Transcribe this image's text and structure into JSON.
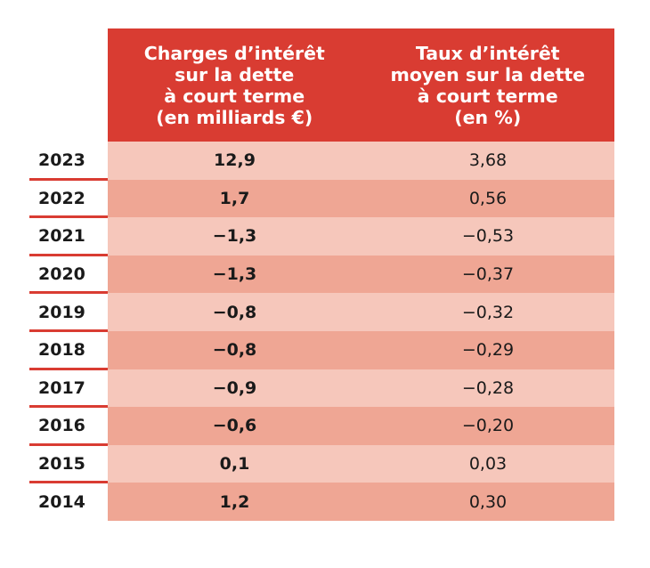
{
  "colors": {
    "header_bg": "#d93c32",
    "row_light": "#f6c7bb",
    "row_dark": "#efa694",
    "underline": "#d93c32"
  },
  "header": {
    "col1": "Charges d’intérêt\nsur la dette\nà court terme\n(en milliards €)",
    "col2": "Taux d’intérêt\nmoyen sur la dette\nà court terme\n(en %)"
  },
  "rows": [
    {
      "year": "2023",
      "charges": "12,9",
      "taux": "3,68"
    },
    {
      "year": "2022",
      "charges": "1,7",
      "taux": "0,56"
    },
    {
      "year": "2021",
      "charges": "−1,3",
      "taux": "−0,53"
    },
    {
      "year": "2020",
      "charges": "−1,3",
      "taux": "−0,37"
    },
    {
      "year": "2019",
      "charges": "−0,8",
      "taux": "−0,32"
    },
    {
      "year": "2018",
      "charges": "−0,8",
      "taux": "−0,29"
    },
    {
      "year": "2017",
      "charges": "−0,9",
      "taux": "−0,28"
    },
    {
      "year": "2016",
      "charges": "−0,6",
      "taux": "−0,20"
    },
    {
      "year": "2015",
      "charges": "0,1",
      "taux": "0,03"
    },
    {
      "year": "2014",
      "charges": "1,2",
      "taux": "0,30"
    }
  ]
}
